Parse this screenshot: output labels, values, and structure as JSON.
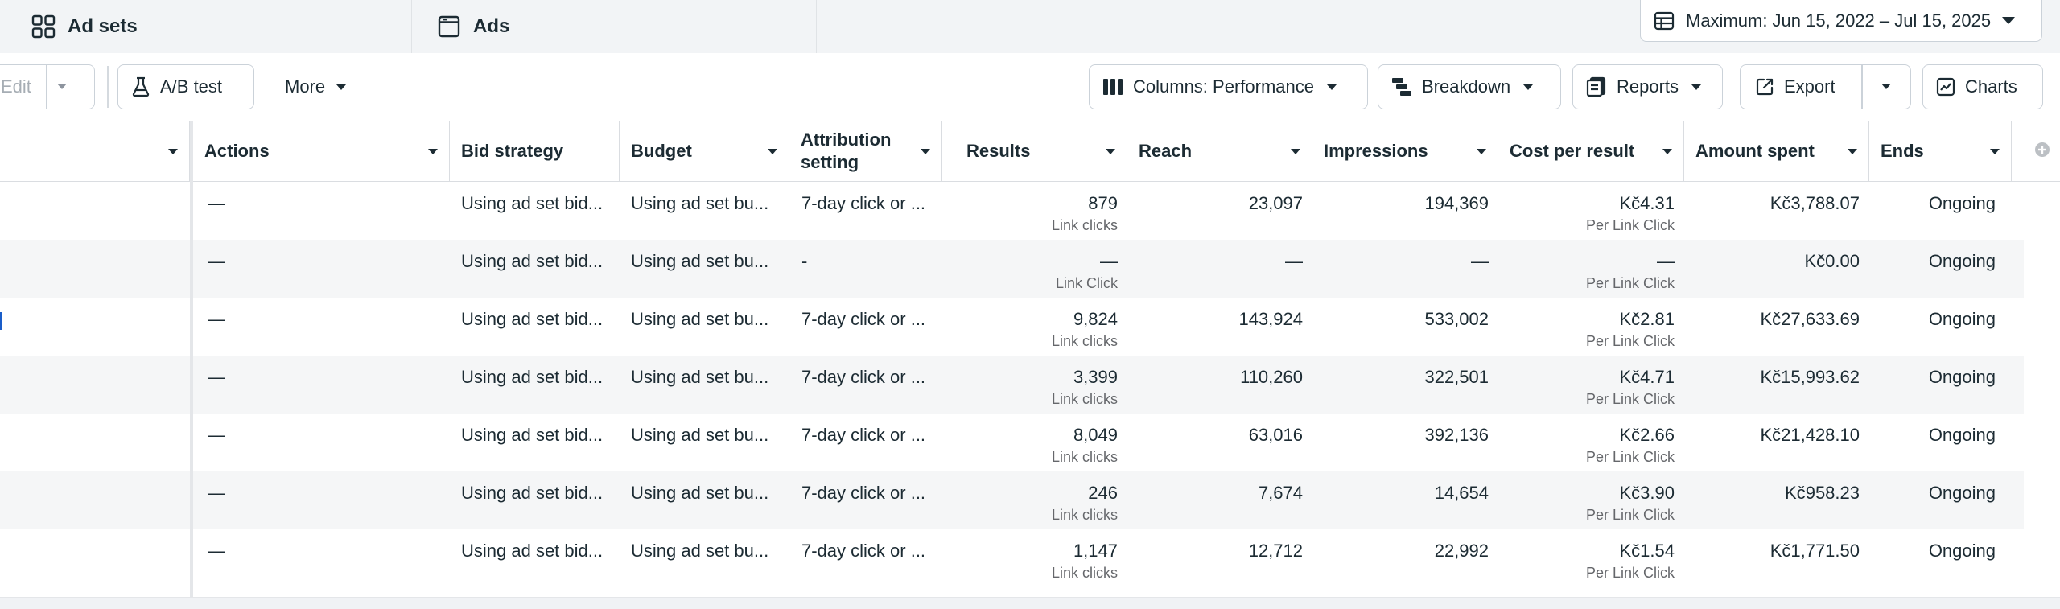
{
  "tabs": {
    "adsets_label": "Ad sets",
    "ads_label": "Ads"
  },
  "date_range": {
    "label": "Maximum: Jun 15, 2022 – Jul 15, 2025"
  },
  "toolbar": {
    "edit_label": "Edit",
    "ab_test_label": "A/B test",
    "more_label": "More",
    "columns_label": "Columns: Performance",
    "breakdown_label": "Breakdown",
    "reports_label": "Reports",
    "export_label": "Export",
    "charts_label": "Charts"
  },
  "columns": {
    "actions": "Actions",
    "bid_strategy": "Bid strategy",
    "budget": "Budget",
    "attribution_line1": "Attribution",
    "attribution_line2": "setting",
    "results": "Results",
    "reach": "Reach",
    "impressions": "Impressions",
    "cost_per_result": "Cost per result",
    "amount_spent": "Amount spent",
    "ends": "Ends"
  },
  "rows": [
    {
      "actions": "—",
      "bid": "Using ad set bid...",
      "budget": "Using ad set bu...",
      "attribution": "7-day click or ...",
      "results": "879",
      "results_sub": "Link clicks",
      "reach": "23,097",
      "impressions": "194,369",
      "cpr": "Kč4.31",
      "cpr_sub": "Per Link Click",
      "spent": "Kč3,788.07",
      "ends": "Ongoing"
    },
    {
      "actions": "—",
      "bid": "Using ad set bid...",
      "budget": "Using ad set bu...",
      "attribution": "-",
      "results": "—",
      "results_sub": "Link Click",
      "reach": "—",
      "impressions": "—",
      "cpr": "—",
      "cpr_sub": "Per Link Click",
      "spent": "Kč0.00",
      "ends": "Ongoing"
    },
    {
      "actions": "—",
      "bid": "Using ad set bid...",
      "budget": "Using ad set bu...",
      "attribution": "7-day click or ...",
      "results": "9,824",
      "results_sub": "Link clicks",
      "reach": "143,924",
      "impressions": "533,002",
      "cpr": "Kč2.81",
      "cpr_sub": "Per Link Click",
      "spent": "Kč27,633.69",
      "ends": "Ongoing"
    },
    {
      "actions": "—",
      "bid": "Using ad set bid...",
      "budget": "Using ad set bu...",
      "attribution": "7-day click or ...",
      "results": "3,399",
      "results_sub": "Link clicks",
      "reach": "110,260",
      "impressions": "322,501",
      "cpr": "Kč4.71",
      "cpr_sub": "Per Link Click",
      "spent": "Kč15,993.62",
      "ends": "Ongoing"
    },
    {
      "actions": "—",
      "bid": "Using ad set bid...",
      "budget": "Using ad set bu...",
      "attribution": "7-day click or ...",
      "results": "8,049",
      "results_sub": "Link clicks",
      "reach": "63,016",
      "impressions": "392,136",
      "cpr": "Kč2.66",
      "cpr_sub": "Per Link Click",
      "spent": "Kč21,428.10",
      "ends": "Ongoing"
    },
    {
      "actions": "—",
      "bid": "Using ad set bid...",
      "budget": "Using ad set bu...",
      "attribution": "7-day click or ...",
      "results": "246",
      "results_sub": "Link clicks",
      "reach": "7,674",
      "impressions": "14,654",
      "cpr": "Kč3.90",
      "cpr_sub": "Per Link Click",
      "spent": "Kč958.23",
      "ends": "Ongoing"
    },
    {
      "actions": "—",
      "bid": "Using ad set bid...",
      "budget": "Using ad set bu...",
      "attribution": "7-day click or ...",
      "results": "1,147",
      "results_sub": "Link clicks",
      "reach": "12,712",
      "impressions": "22,992",
      "cpr": "Kč1.54",
      "cpr_sub": "Per Link Click",
      "spent": "Kč1,771.50",
      "ends": "Ongoing"
    }
  ]
}
